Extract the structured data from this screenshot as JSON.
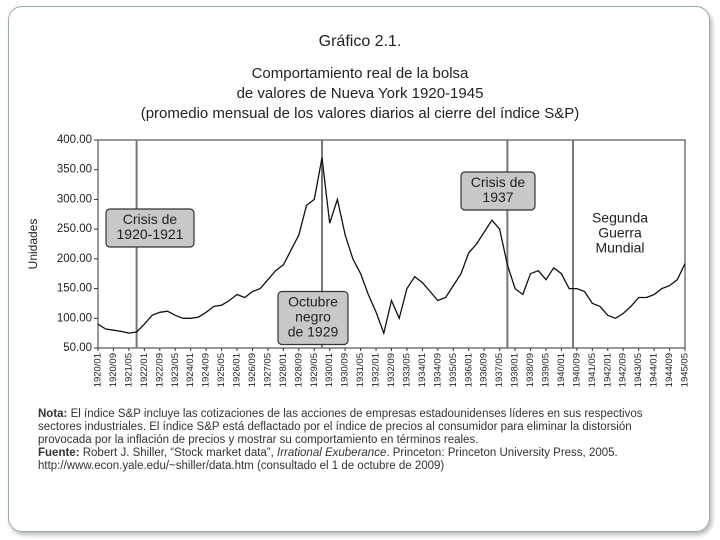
{
  "chart_data": {
    "type": "line",
    "title": "Gráfico 2.1.",
    "subtitle": [
      "Comportamiento real de la bolsa",
      "de valores de Nueva York 1920-1945",
      "(promedio mensual de los valores diarios al cierre del índice S&P)"
    ],
    "y_label": "Unidades",
    "color": "#111111",
    "ylim": [
      50,
      400
    ],
    "yticks": [
      {
        "value": 50,
        "label": "50.00"
      },
      {
        "value": 100,
        "label": "100.00"
      },
      {
        "value": 150,
        "label": "150.00"
      },
      {
        "value": 200,
        "label": "200.00"
      },
      {
        "value": 250,
        "label": "250.00"
      },
      {
        "value": 300,
        "label": "300.00"
      },
      {
        "value": 350,
        "label": "350.00"
      },
      {
        "value": 400,
        "label": "400.00"
      }
    ],
    "categories": [
      "1920/01",
      null,
      "1920/09",
      null,
      "1921/05",
      null,
      "1922/01",
      null,
      "1922/09",
      null,
      "1923/05",
      null,
      "1924/01",
      null,
      "1924/09",
      null,
      "1925/05",
      null,
      "1926/01",
      null,
      "1926/09",
      null,
      "1927/05",
      null,
      "1928/01",
      null,
      "1928/09",
      null,
      "1929/05",
      null,
      "1930/01",
      null,
      "1930/09",
      null,
      "1931/05",
      null,
      "1932/01",
      null,
      "1932/09",
      null,
      "1933/05",
      null,
      "1934/01",
      null,
      "1934/09",
      null,
      "1935/05",
      null,
      "1936/01",
      null,
      "1936/09",
      null,
      "1937/05",
      null,
      "1938/01",
      null,
      "1938/09",
      null,
      "1939/05",
      null,
      "1940/01",
      null,
      "1940/09",
      null,
      "1941/05",
      null,
      "1942/01",
      null,
      "1942/09",
      null,
      "1943/05",
      null,
      "1944/01",
      null,
      "1944/09",
      null,
      "1945/05"
    ],
    "values": [
      90,
      82,
      80,
      78,
      75,
      77,
      90,
      105,
      110,
      112,
      105,
      100,
      100,
      102,
      110,
      120,
      122,
      130,
      140,
      135,
      145,
      150,
      165,
      180,
      190,
      215,
      240,
      290,
      300,
      370,
      260,
      300,
      240,
      200,
      175,
      140,
      110,
      75,
      130,
      100,
      150,
      170,
      160,
      145,
      130,
      135,
      155,
      175,
      210,
      225,
      245,
      265,
      250,
      190,
      150,
      140,
      175,
      180,
      165,
      185,
      175,
      150,
      150,
      145,
      125,
      120,
      105,
      100,
      108,
      120,
      135,
      135,
      140,
      150,
      155,
      165,
      192
    ],
    "annotations": [
      {
        "lines": [
          "Crisis de",
          "1920-1921"
        ],
        "boxed": true
      },
      {
        "lines": [
          "Octubre",
          "negro",
          "de 1929"
        ],
        "boxed": true
      },
      {
        "lines": [
          "Crisis de",
          "1937"
        ],
        "boxed": true
      },
      {
        "lines": [
          "Segunda",
          "Guerra",
          "Mundial"
        ],
        "boxed": false
      }
    ],
    "note_label": "Nota:",
    "note": "El índice S&P incluye las cotizaciones de las acciones de empresas estadounidenses líderes en sus respectivos sectores industriales. El índice S&P está deflactado por el índice de precios al consumidor para eliminar la distorsión provocada por la inflación de precios y mostrar su comportamiento en términos reales.",
    "source_label": "Fuente:",
    "source_parts": [
      "Robert J. Shiller, “Stock market data”, ",
      "Irrational Exuberance",
      ". Princeton: Princeton University Press, 2005. http://www.econ.yale.edu/~shiller/data.htm (consultado el 1 de octubre de 2009)"
    ]
  }
}
